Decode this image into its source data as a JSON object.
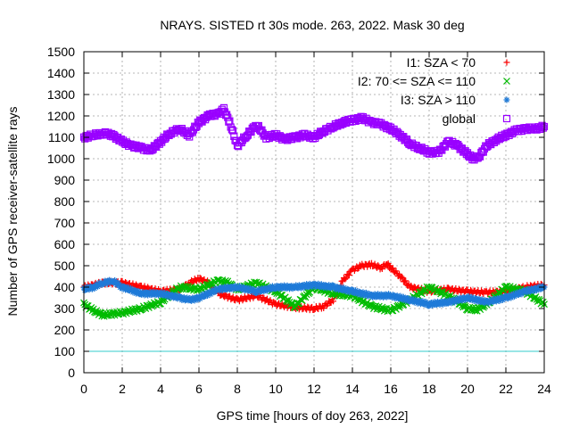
{
  "chart_data": {
    "type": "scatter",
    "title": "NRAYS. SISTED rt 30s mode. 263, 2022. Mask 30 deg",
    "xlabel": "GPS time [hours of doy 263, 2022]",
    "ylabel": "Number of GPS receiver-satellite rays",
    "xlim": [
      0,
      24
    ],
    "ylim": [
      0,
      1500
    ],
    "xticks": [
      "0",
      "2",
      "4",
      "6",
      "8",
      "10",
      "12",
      "14",
      "16",
      "18",
      "20",
      "22",
      "24"
    ],
    "yticks": [
      "0",
      "100",
      "200",
      "300",
      "400",
      "500",
      "600",
      "700",
      "800",
      "900",
      "1000",
      "1100",
      "1200",
      "1300",
      "1400",
      "1500"
    ],
    "grid": true,
    "legend_position": "top-right",
    "reference_line": {
      "y": 100,
      "color": "#33cccc"
    },
    "series": [
      {
        "name": "I1: SZA < 70",
        "color": "#ff0000",
        "marker": "plus",
        "x": [
          0,
          1,
          2,
          3,
          4,
          5,
          5.5,
          6,
          6.5,
          7,
          8,
          9,
          10,
          11,
          12,
          12.5,
          13,
          13.5,
          14,
          14.5,
          15,
          15.5,
          15.8,
          16,
          16.5,
          17,
          18,
          19,
          20,
          21,
          22,
          23,
          24
        ],
        "y": [
          400,
          420,
          420,
          400,
          380,
          390,
          420,
          440,
          420,
          370,
          340,
          360,
          320,
          305,
          300,
          310,
          340,
          430,
          480,
          500,
          505,
          490,
          510,
          490,
          450,
          400,
          380,
          390,
          380,
          375,
          380,
          400,
          410
        ]
      },
      {
        "name": "I2: 70 <= SZA <= 110",
        "color": "#00bb00",
        "marker": "x",
        "x": [
          0,
          0.5,
          1,
          2,
          3,
          4,
          5,
          6,
          7,
          7.5,
          8,
          9,
          10,
          11,
          12,
          13,
          14,
          15,
          16,
          17,
          18,
          19,
          20,
          20.5,
          21,
          22,
          23,
          24
        ],
        "y": [
          320,
          290,
          270,
          280,
          300,
          330,
          400,
          390,
          430,
          420,
          390,
          420,
          380,
          310,
          400,
          370,
          360,
          310,
          290,
          340,
          400,
          360,
          300,
          295,
          320,
          400,
          380,
          320
        ]
      },
      {
        "name": "I3: SZA > 110",
        "color": "#1e7ad8",
        "marker": "star",
        "x": [
          0,
          0.5,
          1,
          1.5,
          2,
          3,
          4,
          5,
          5.5,
          6,
          7,
          8,
          9,
          10,
          11,
          12,
          13,
          14,
          15,
          16,
          17,
          18,
          19,
          20,
          21,
          22,
          23,
          24
        ],
        "y": [
          390,
          400,
          420,
          430,
          400,
          370,
          370,
          350,
          340,
          350,
          390,
          400,
          380,
          400,
          400,
          410,
          400,
          380,
          360,
          360,
          340,
          320,
          330,
          350,
          330,
          350,
          380,
          400
        ]
      },
      {
        "name": "global",
        "color": "#9900ff",
        "marker": "square",
        "x": [
          0,
          0.5,
          1,
          1.5,
          2,
          2.5,
          3,
          3.5,
          4,
          4.5,
          5,
          5.5,
          6,
          6.5,
          7,
          7.3,
          7.6,
          8,
          8.5,
          9,
          9.5,
          10,
          10.5,
          11,
          11.5,
          12,
          12.5,
          13,
          13.5,
          14,
          14.5,
          15,
          15.5,
          16,
          16.5,
          17,
          17.5,
          18,
          18.5,
          19,
          19.5,
          20,
          20.3,
          20.6,
          21,
          21.5,
          22,
          22.5,
          23,
          23.5,
          24
        ],
        "y": [
          1100,
          1110,
          1120,
          1110,
          1080,
          1060,
          1050,
          1040,
          1080,
          1120,
          1140,
          1110,
          1170,
          1200,
          1210,
          1230,
          1170,
          1060,
          1110,
          1160,
          1100,
          1110,
          1090,
          1100,
          1110,
          1100,
          1130,
          1150,
          1170,
          1180,
          1190,
          1170,
          1160,
          1140,
          1110,
          1070,
          1050,
          1030,
          1030,
          1080,
          1060,
          1020,
          1000,
          1010,
          1060,
          1090,
          1110,
          1130,
          1140,
          1140,
          1150
        ]
      }
    ]
  }
}
